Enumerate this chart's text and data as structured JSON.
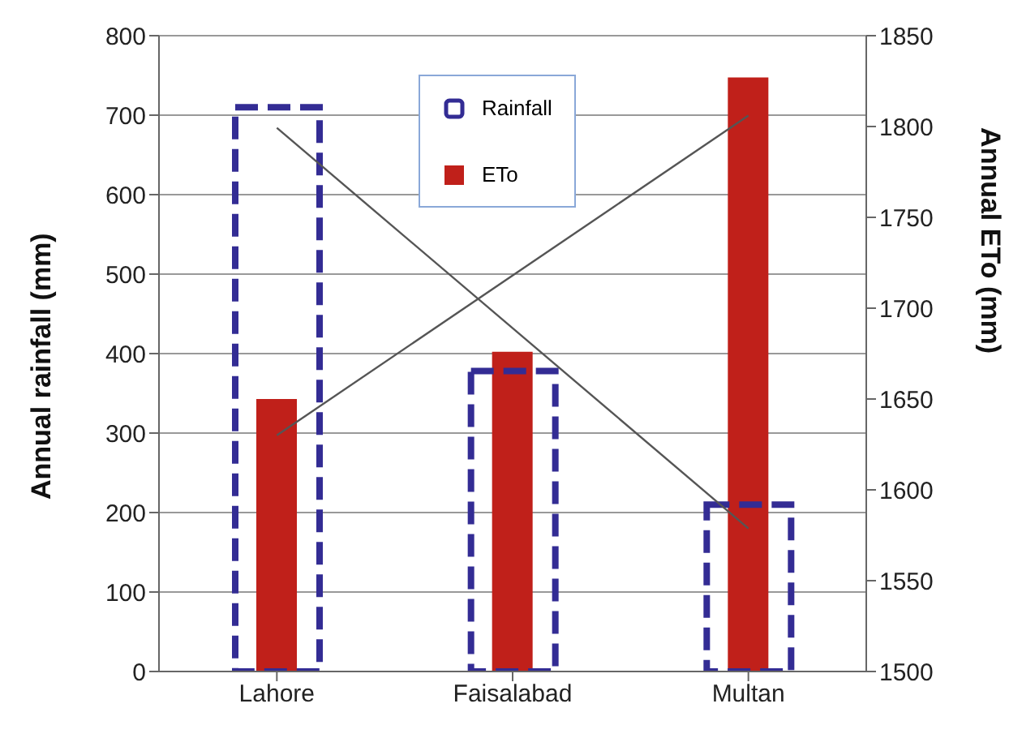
{
  "chart_data": {
    "type": "bar",
    "categories": [
      "Lahore",
      "Faisalabad",
      "Multan"
    ],
    "ylabel": "Annual rainfall (mm)",
    "y2label": "Annual ETo (mm)",
    "ylim": [
      0,
      800
    ],
    "yticks": [
      0,
      100,
      200,
      300,
      400,
      500,
      600,
      700,
      800
    ],
    "y2lim": [
      1500,
      1850
    ],
    "y2ticks": [
      1500,
      1550,
      1600,
      1650,
      1700,
      1750,
      1800,
      1850
    ],
    "grid": "y",
    "legend": "top",
    "series": [
      {
        "name": "Rainfall",
        "color": "#332c94",
        "values": [
          710,
          378,
          210
        ],
        "line_style": "dashed"
      },
      {
        "name": "ETo",
        "color": "#c0201a",
        "values": [
          1650,
          1676,
          1827
        ],
        "axis": "y2"
      },
      {
        "type": "line",
        "color": "#555555",
        "x": [
          "Lahore",
          "Multan"
        ],
        "values": [
          684,
          180
        ]
      },
      {
        "type": "line",
        "color": "#555555",
        "x": [
          "Lahore",
          "Multan"
        ],
        "values": [
          1630,
          1806
        ],
        "axis": "y2"
      }
    ]
  }
}
